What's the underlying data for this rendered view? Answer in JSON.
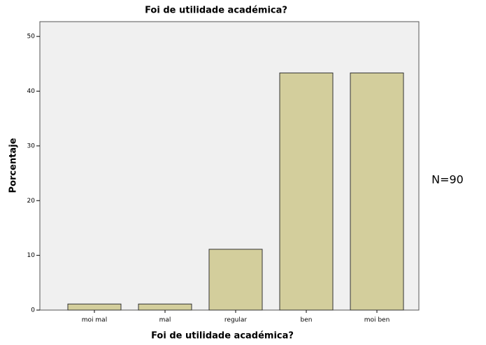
{
  "chart_data": {
    "type": "bar",
    "title": "Foi de utilidade académica?",
    "xlabel": "Foi de utilidade académica?",
    "ylabel": "Porcentaje",
    "annotation": "N=90",
    "categories": [
      "moi mal",
      "mal",
      "regular",
      "ben",
      "moi ben"
    ],
    "values": [
      1.11,
      1.11,
      11.11,
      43.33,
      43.33
    ],
    "color": "#d3ce9c",
    "ylim": [
      0,
      52.7
    ],
    "yticks": [
      0,
      10,
      20,
      30,
      40,
      50
    ],
    "grid": false
  }
}
